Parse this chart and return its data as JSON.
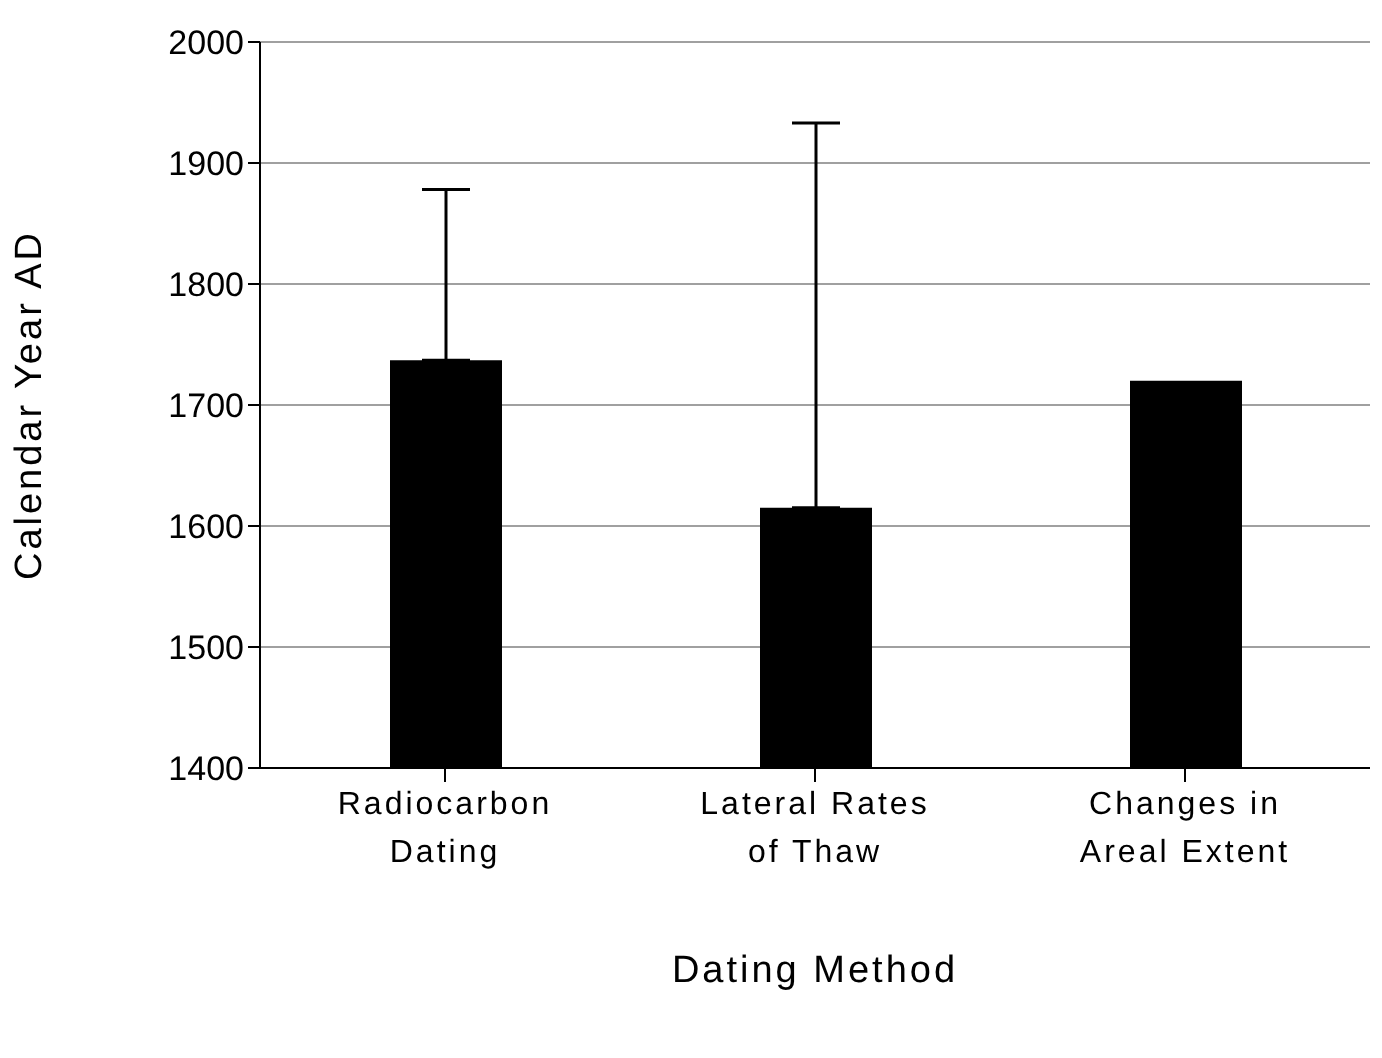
{
  "chart_data": {
    "type": "bar",
    "xlabel": "Dating Method",
    "ylabel": "Calendar Year AD",
    "categories": [
      "Radiocarbon Dating",
      "Lateral Rates of Thaw",
      "Changes in Areal Extent"
    ],
    "values": [
      1737,
      1615,
      1720
    ],
    "errors": [
      [
        1737,
        1878
      ],
      [
        1615,
        1933
      ],
      null
    ],
    "color": "#000000",
    "ylim": [
      1400,
      2000
    ],
    "yticks": [
      1400,
      1500,
      1600,
      1700,
      1800,
      1900,
      2000
    ],
    "grid": "y"
  }
}
